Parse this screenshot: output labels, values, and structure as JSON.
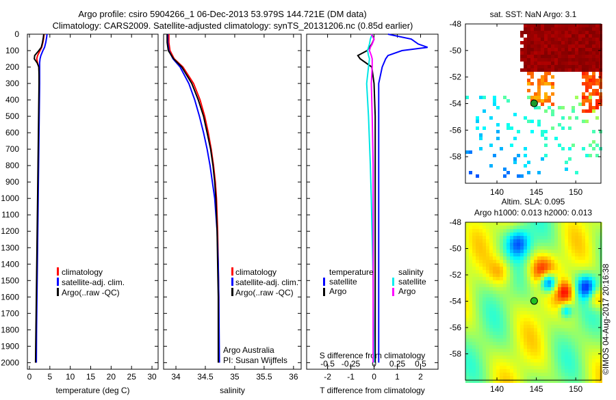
{
  "title": {
    "line1": "Argo profile: csiro 5904266_1 06-Dec-2013 53.979S 144.721E (DM data)",
    "line2": "Climatology: CARS2009. Satellite-adjusted climatology: synTS_20131206.nc (0.85d earlier)"
  },
  "legend": {
    "clim": "climatology",
    "sat": "satellite-adj. clim.",
    "argo": "Argo(..raw -QC)",
    "temperature": "temperature",
    "salinity": "salinity",
    "satellite": "satellite",
    "argo_short": "Argo"
  },
  "credits": {
    "line1": "Argo Australia",
    "line2": "PI: Susan Wijffels",
    "stamp": "©IMOS 04-Aug-2017 20:16:38"
  },
  "colors": {
    "clim": "#ff0000",
    "sat": "#0000ff",
    "argo": "#000000",
    "sal_sat": "#00e5e5",
    "sal_argo": "#ff00ff"
  },
  "chart_data": [
    {
      "type": "line",
      "name": "temperature",
      "xlabel": "temperature (deg C)",
      "ylabel": "",
      "xlim": [
        -0.5,
        31.5
      ],
      "ylim": [
        2040,
        0
      ],
      "xticks": [
        "0",
        "5",
        "10",
        "15",
        "20",
        "25",
        "30"
      ],
      "xtick_values": [
        0,
        5,
        10,
        15,
        20,
        25,
        30
      ],
      "yticks": [
        "0",
        "100",
        "200",
        "300",
        "400",
        "500",
        "600",
        "700",
        "800",
        "900",
        "1000",
        "1100",
        "1200",
        "1300",
        "1400",
        "1500",
        "1600",
        "1700",
        "1800",
        "1900",
        "2000"
      ],
      "depth": [
        0,
        20,
        50,
        80,
        100,
        130,
        150,
        175,
        200,
        250,
        300,
        400,
        600,
        800,
        1000,
        1200,
        1400,
        1600,
        1800,
        2000
      ],
      "series": [
        {
          "name": "climatology",
          "values": [
            3.6,
            3.5,
            3.3,
            3.0,
            2.6,
            2.0,
            1.8,
            2.0,
            2.3,
            2.4,
            2.4,
            2.35,
            2.25,
            2.15,
            2.05,
            1.95,
            1.85,
            1.75,
            1.65,
            1.55
          ]
        },
        {
          "name": "satellite-adj. clim.",
          "values": [
            4.3,
            4.2,
            4.0,
            3.7,
            3.3,
            2.8,
            2.6,
            2.5,
            2.5,
            2.5,
            2.5,
            2.45,
            2.35,
            2.25,
            2.15,
            2.05,
            1.95,
            1.85,
            1.75,
            1.7
          ]
        },
        {
          "name": "Argo",
          "values": [
            3.5,
            3.4,
            3.2,
            2.9,
            2.3,
            1.3,
            1.2,
            1.9,
            2.3,
            2.35,
            2.35,
            2.3,
            2.2,
            2.1,
            2.0,
            1.9,
            1.8,
            1.7,
            1.6,
            1.5
          ]
        }
      ]
    },
    {
      "type": "line",
      "name": "salinity",
      "xlabel": "salinity",
      "xlim": [
        33.79,
        36.13
      ],
      "ylim": [
        2040,
        0
      ],
      "xticks": [
        "34",
        "34.5",
        "35",
        "35.5",
        "36"
      ],
      "xtick_values": [
        34,
        34.5,
        35,
        35.5,
        36
      ],
      "depth": [
        0,
        50,
        100,
        150,
        200,
        300,
        400,
        500,
        600,
        700,
        800,
        900,
        1000,
        1200,
        1400,
        1600,
        2000
      ],
      "series": [
        {
          "name": "climatology",
          "values": [
            33.88,
            33.88,
            33.9,
            33.97,
            34.12,
            34.3,
            34.41,
            34.49,
            34.55,
            34.6,
            34.64,
            34.67,
            34.69,
            34.71,
            34.72,
            34.73,
            34.73
          ]
        },
        {
          "name": "satellite-adj. clim.",
          "values": [
            33.86,
            33.86,
            33.88,
            33.95,
            34.07,
            34.22,
            34.32,
            34.4,
            34.47,
            34.53,
            34.58,
            34.62,
            34.66,
            34.7,
            34.72,
            34.73,
            34.74
          ]
        },
        {
          "name": "Argo",
          "values": [
            33.85,
            33.85,
            33.87,
            33.96,
            34.1,
            34.27,
            34.38,
            34.47,
            34.53,
            34.59,
            34.63,
            34.66,
            34.68,
            34.7,
            34.71,
            34.72,
            34.72
          ]
        }
      ]
    },
    {
      "type": "line",
      "name": "difference",
      "xlabel": "T difference from climatology",
      "x2label": "S difference from climatology",
      "xlim": [
        -2.9,
        2.75
      ],
      "x2lim": [
        -0.725,
        0.6875
      ],
      "ylim": [
        2040,
        0
      ],
      "xticks": [
        "-2",
        "-1",
        "0",
        "1",
        "2"
      ],
      "xtick_values": [
        -2,
        -1,
        0,
        1,
        2
      ],
      "x2ticks": [
        "-0.5",
        "-0.25",
        "0",
        "0.25",
        "0.5"
      ],
      "x2tick_values": [
        -0.5,
        -0.25,
        0,
        0.25,
        0.5
      ],
      "depth": [
        0,
        30,
        60,
        80,
        100,
        130,
        150,
        200,
        300,
        500,
        800,
        1000,
        1500,
        2000
      ],
      "series": [
        {
          "name": "temperature satellite",
          "axis": "T",
          "values": [
            0.6,
            1.6,
            1.9,
            2.3,
            1.2,
            0.6,
            0.5,
            0.35,
            0.2,
            0.2,
            0.2,
            0.2,
            0.2,
            0.2
          ]
        },
        {
          "name": "temperature Argo",
          "axis": "T",
          "values": [
            -0.1,
            0,
            -0.1,
            -0.2,
            -0.3,
            -0.7,
            -0.6,
            -0.1,
            0.0,
            0.05,
            0.05,
            0.05,
            0.05,
            0.05
          ]
        },
        {
          "name": "salinity satellite",
          "axis": "S",
          "values": [
            -0.02,
            -0.04,
            -0.05,
            -0.06,
            -0.07,
            -0.06,
            -0.05,
            -0.06,
            -0.08,
            -0.06,
            -0.04,
            -0.03,
            -0.01,
            0.0
          ]
        },
        {
          "name": "salinity Argo",
          "axis": "S",
          "values": [
            -0.03,
            0.0,
            -0.02,
            -0.04,
            -0.05,
            -0.03,
            -0.02,
            -0.02,
            -0.03,
            -0.02,
            -0.01,
            -0.01,
            -0.01,
            -0.01
          ]
        }
      ]
    },
    {
      "type": "heatmap",
      "name": "sst-map",
      "title": "sat. SST: NaN Argo: 3.1",
      "xlim": [
        136,
        153.2
      ],
      "ylim": [
        -60,
        -48
      ],
      "xticks": [
        "140",
        "145",
        "150"
      ],
      "xtick_values": [
        140,
        145,
        150
      ],
      "yticks": [
        "-48",
        "-50",
        "-52",
        "-54",
        "-56",
        "-58"
      ],
      "ytick_values": [
        -48,
        -50,
        -52,
        -54,
        -56,
        -58
      ],
      "marker": [
        144.721,
        -53.979
      ]
    },
    {
      "type": "heatmap",
      "name": "altimetry-map",
      "title": "Altim. SLA: 0.095",
      "subtitle": "Argo h1000: 0.013 h2000: 0.013",
      "xlim": [
        136,
        153.2
      ],
      "ylim": [
        -60,
        -48
      ],
      "xticks": [
        "140",
        "145",
        "150"
      ],
      "xtick_values": [
        140,
        145,
        150
      ],
      "yticks": [
        "-48",
        "-50",
        "-52",
        "-54",
        "-56",
        "-58"
      ],
      "ytick_values": [
        -48,
        -50,
        -52,
        -54,
        -56,
        -58
      ],
      "marker": [
        144.721,
        -53.979
      ]
    }
  ]
}
